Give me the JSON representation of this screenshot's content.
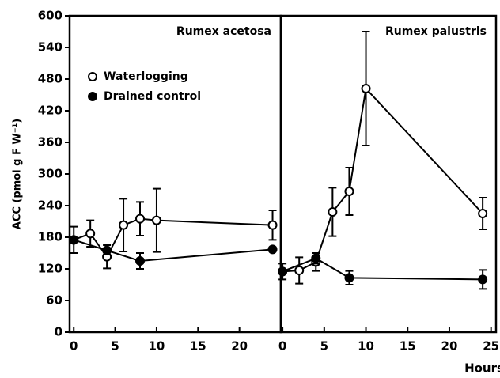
{
  "chart_data": [
    {
      "type": "line",
      "title": "Rumex acetosa",
      "ylabel": "ACC (pmol g F W⁻¹)",
      "xlim": [
        -0.5,
        25
      ],
      "xticks": [
        0,
        5,
        10,
        15,
        20
      ],
      "ylim": [
        0,
        600
      ],
      "yticks": [
        0,
        60,
        120,
        180,
        240,
        300,
        360,
        420,
        480,
        540,
        600
      ],
      "legend": "upper left",
      "series": [
        {
          "name": "Waterlogging",
          "color": "#000000",
          "marker": "open",
          "x": [
            0,
            2,
            4,
            6,
            8,
            10,
            24
          ],
          "values": [
            175,
            187,
            143,
            203,
            215,
            212,
            203
          ],
          "errors": [
            25,
            25,
            22,
            50,
            32,
            60,
            28
          ]
        },
        {
          "name": "Drained control",
          "color": "#000000",
          "marker": "filled",
          "x": [
            0,
            4,
            8,
            24
          ],
          "values": [
            175,
            155,
            135,
            157
          ],
          "errors": [
            null,
            null,
            15,
            null
          ]
        }
      ]
    },
    {
      "type": "line",
      "title": "Rumex palustris",
      "xlabel": "Hours",
      "xlim": [
        -0.2,
        25.6
      ],
      "xticks": [
        0,
        5,
        10,
        15,
        20,
        25
      ],
      "ylim": [
        0,
        600
      ],
      "series": [
        {
          "color": "#000000",
          "marker": "open",
          "x": [
            0,
            2,
            4,
            6,
            8,
            10,
            24
          ],
          "values": [
            115,
            117,
            133,
            228,
            267,
            462,
            225
          ],
          "errors": [
            15,
            25,
            17,
            46,
            45,
            108,
            30
          ]
        },
        {
          "color": "#000000",
          "marker": "filled",
          "x": [
            0,
            4,
            8,
            24
          ],
          "values": [
            115,
            140,
            103,
            100
          ],
          "errors": [
            null,
            10,
            13,
            18
          ]
        }
      ]
    }
  ]
}
